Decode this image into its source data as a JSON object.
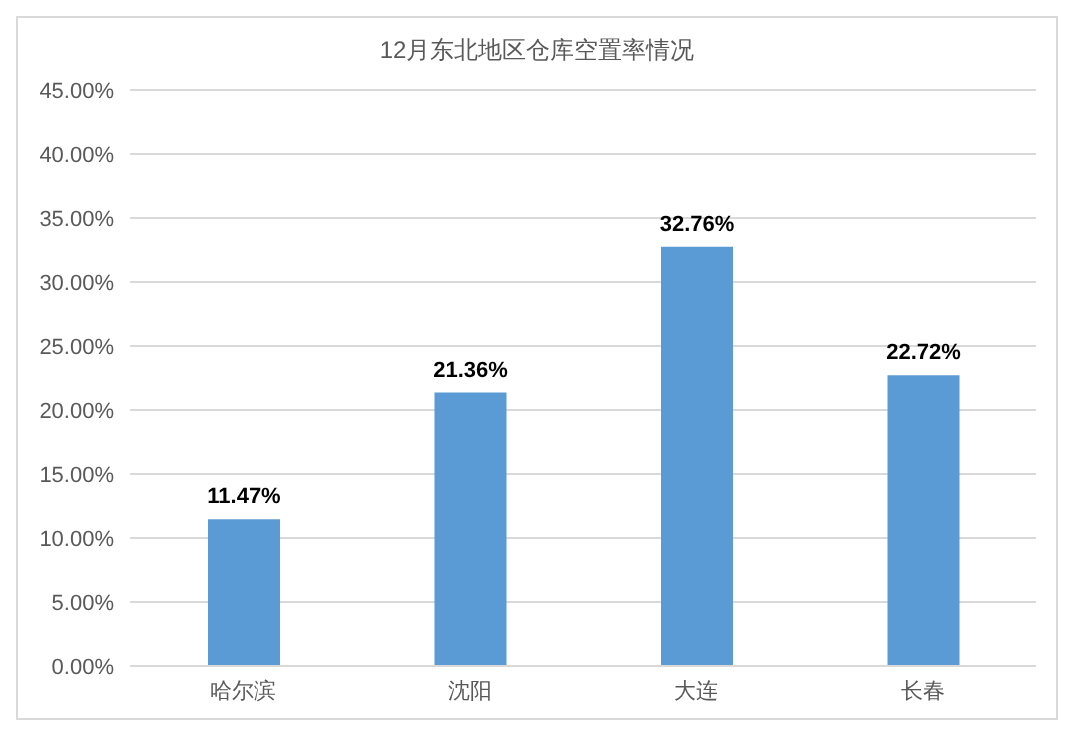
{
  "chart_data": {
    "type": "bar",
    "title": "12月东北地区仓库空置率情况",
    "categories": [
      "哈尔滨",
      "沈阳",
      "大连",
      "长春"
    ],
    "values": [
      11.47,
      21.36,
      32.76,
      22.72
    ],
    "value_labels": [
      "11.47%",
      "21.36%",
      "32.76%",
      "22.72%"
    ],
    "color": "#5b9bd5",
    "ylim": [
      0,
      45
    ],
    "yticks": [
      {
        "value": 0,
        "label": "0.00%"
      },
      {
        "value": 5,
        "label": "5.00%"
      },
      {
        "value": 10,
        "label": "10.00%"
      },
      {
        "value": 15,
        "label": "15.00%"
      },
      {
        "value": 20,
        "label": "20.00%"
      },
      {
        "value": 25,
        "label": "25.00%"
      },
      {
        "value": 30,
        "label": "30.00%"
      },
      {
        "value": 35,
        "label": "35.00%"
      },
      {
        "value": 40,
        "label": "40.00%"
      },
      {
        "value": 45,
        "label": "45.00%"
      }
    ],
    "grid": "y"
  }
}
